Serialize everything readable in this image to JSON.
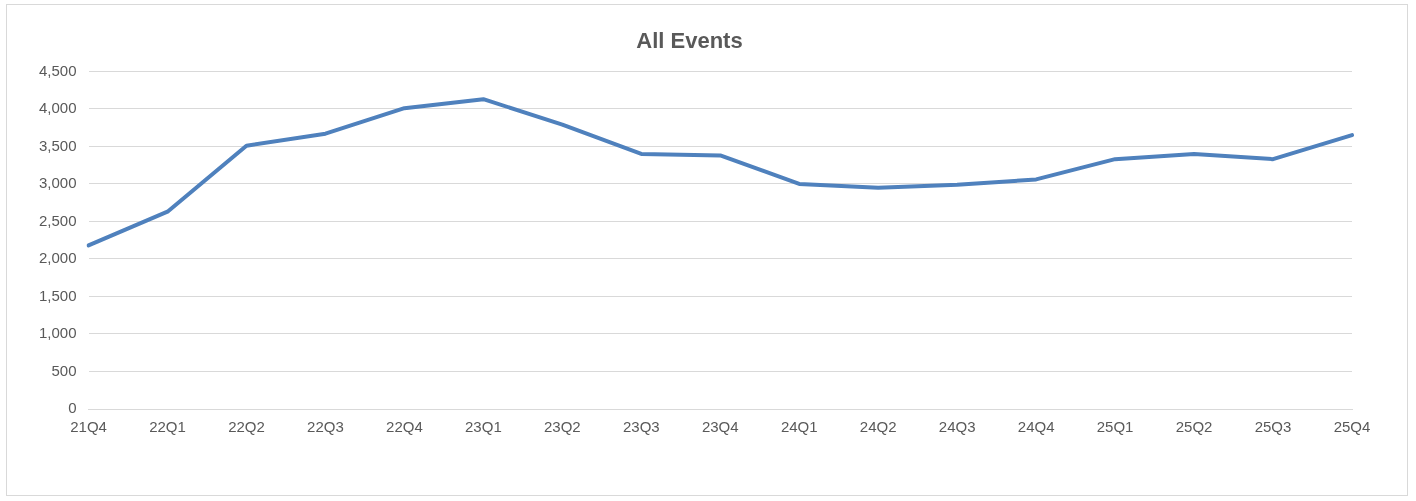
{
  "chart_data": {
    "type": "line",
    "title": "All Events",
    "categories": [
      "21Q4",
      "22Q1",
      "22Q2",
      "22Q3",
      "22Q4",
      "23Q1",
      "23Q2",
      "23Q3",
      "23Q4",
      "24Q1",
      "24Q2",
      "24Q3",
      "24Q4",
      "25Q1",
      "25Q2",
      "25Q3",
      "25Q4"
    ],
    "series": [
      {
        "color": "#4f81bd",
        "values": [
          2180,
          2630,
          3510,
          3670,
          4010,
          4130,
          3790,
          3400,
          3380,
          3000,
          2950,
          2990,
          3060,
          3330,
          3400,
          3330,
          3650
        ]
      }
    ],
    "ylim": [
      0,
      4500
    ],
    "yticks": [
      {
        "value": 0,
        "label": "0"
      },
      {
        "value": 500,
        "label": "500"
      },
      {
        "value": 1000,
        "label": "1,000"
      },
      {
        "value": 1500,
        "label": "1,500"
      },
      {
        "value": 2000,
        "label": "2,000"
      },
      {
        "value": 2500,
        "label": "2,500"
      },
      {
        "value": 3000,
        "label": "3,000"
      },
      {
        "value": 3500,
        "label": "3,500"
      },
      {
        "value": 4000,
        "label": "4,000"
      },
      {
        "value": 4500,
        "label": "4,500"
      }
    ],
    "grid": "y",
    "marker": "none",
    "line_style": "solid"
  }
}
